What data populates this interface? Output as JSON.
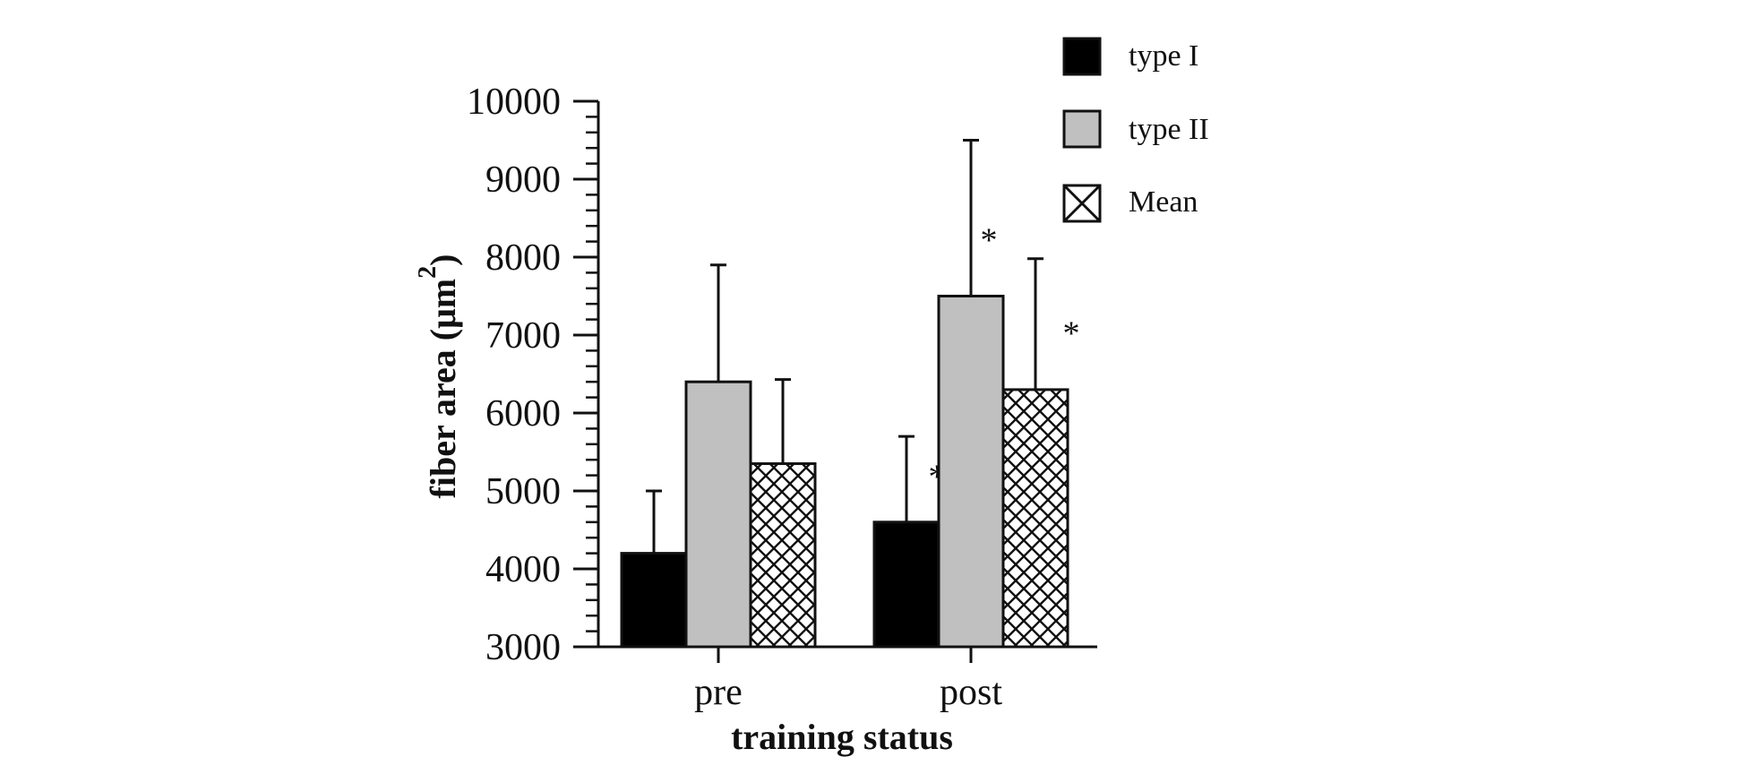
{
  "chart_data": {
    "type": "bar",
    "title": "",
    "xlabel": "training status",
    "ylabel": "fiber area (μm²)",
    "ylabel_base": "fiber area (μm",
    "ylabel_exp": "2",
    "ylabel_close": ")",
    "ylim": [
      3000,
      10000
    ],
    "yticks": [
      "3000",
      "4000",
      "5000",
      "6000",
      "7000",
      "8000",
      "9000",
      "10000"
    ],
    "categories": [
      "pre",
      "post"
    ],
    "series": [
      {
        "name": "type I",
        "fill": "solid-black",
        "values": [
          4200,
          4600
        ],
        "errors": [
          800,
          1100
        ],
        "significant": [
          false,
          true
        ]
      },
      {
        "name": "type II",
        "fill": "solid-gray",
        "values": [
          6400,
          7500
        ],
        "errors": [
          1500,
          2000
        ],
        "significant": [
          false,
          true
        ]
      },
      {
        "name": "Mean",
        "fill": "crosshatch",
        "values": [
          5350,
          6300
        ],
        "errors": [
          1080,
          1680
        ],
        "significant": [
          false,
          true
        ]
      }
    ],
    "significance_marker": "*",
    "legend_position": "top-right",
    "grid": false
  },
  "colors": {
    "type_I": "#000000",
    "type_II": "#c0c0c0",
    "outline": "#111111",
    "background": "#ffffff"
  }
}
